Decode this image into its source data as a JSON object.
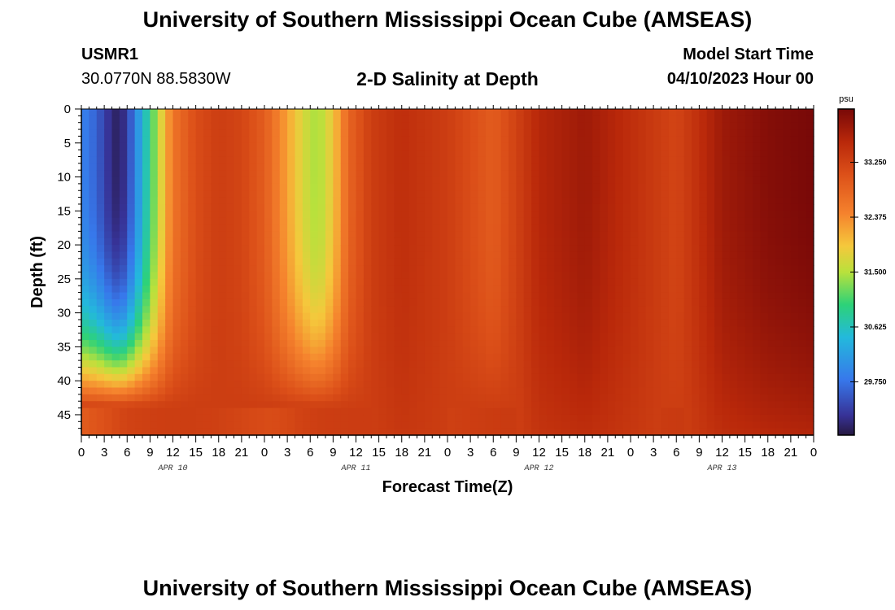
{
  "header": {
    "title": "University of Southern Mississippi Ocean Cube (AMSEAS)",
    "station": "USMR1",
    "coords": "30.0770N  88.5830W",
    "subtitle": "2-D Salinity at Depth",
    "model_start_label": "Model Start Time",
    "model_start_value": "04/10/2023 Hour 00"
  },
  "footer": {
    "title": "University of Southern Mississippi Ocean Cube (AMSEAS)"
  },
  "chart_data": {
    "type": "heatmap",
    "title": "2-D Salinity at Depth",
    "xlabel": "Forecast Time(Z)",
    "ylabel": "Depth (ft)",
    "xlim": [
      0,
      96
    ],
    "ylim": [
      48,
      0
    ],
    "x_ticks": [
      "0",
      "3",
      "6",
      "9",
      "12",
      "15",
      "18",
      "21",
      "0",
      "3",
      "6",
      "9",
      "12",
      "15",
      "18",
      "21",
      "0",
      "3",
      "6",
      "9",
      "12",
      "15",
      "18",
      "21",
      "0",
      "3",
      "6",
      "9",
      "12",
      "15",
      "18",
      "21",
      "0"
    ],
    "x_tick_hours": [
      0,
      3,
      6,
      9,
      12,
      15,
      18,
      21,
      24,
      27,
      30,
      33,
      36,
      39,
      42,
      45,
      48,
      51,
      54,
      57,
      60,
      63,
      66,
      69,
      72,
      75,
      78,
      81,
      84,
      87,
      90,
      93,
      96
    ],
    "day_labels": [
      {
        "label": "APR 10",
        "hour": 12
      },
      {
        "label": "APR 11",
        "hour": 36
      },
      {
        "label": "APR 12",
        "hour": 60
      },
      {
        "label": "APR 13",
        "hour": 84
      }
    ],
    "y_ticks": [
      0,
      5,
      10,
      15,
      20,
      25,
      30,
      35,
      40,
      45
    ],
    "colorbar": {
      "unit": "psu",
      "min": 28.9,
      "max": 34.1,
      "ticks": [
        33.25,
        32.375,
        31.5,
        30.625,
        29.75
      ],
      "tick_labels": [
        "33.250",
        "32.375",
        "31.500",
        "30.625",
        "29.750"
      ]
    },
    "surface_salinity_by_hour": [
      {
        "hour": 0,
        "value": 29.9
      },
      {
        "hour": 2,
        "value": 29.6
      },
      {
        "hour": 4,
        "value": 29.1
      },
      {
        "hour": 5,
        "value": 29.0
      },
      {
        "hour": 6,
        "value": 29.3
      },
      {
        "hour": 8,
        "value": 30.4
      },
      {
        "hour": 10,
        "value": 31.5
      },
      {
        "hour": 12,
        "value": 32.6
      },
      {
        "hour": 15,
        "value": 33.1
      },
      {
        "hour": 18,
        "value": 33.3
      },
      {
        "hour": 21,
        "value": 33.2
      },
      {
        "hour": 24,
        "value": 32.9
      },
      {
        "hour": 27,
        "value": 32.2
      },
      {
        "hour": 29,
        "value": 31.7
      },
      {
        "hour": 31,
        "value": 31.4
      },
      {
        "hour": 33,
        "value": 31.9
      },
      {
        "hour": 35,
        "value": 32.8
      },
      {
        "hour": 38,
        "value": 33.3
      },
      {
        "hour": 42,
        "value": 33.5
      },
      {
        "hour": 48,
        "value": 33.3
      },
      {
        "hour": 54,
        "value": 32.9
      },
      {
        "hour": 60,
        "value": 33.6
      },
      {
        "hour": 66,
        "value": 33.8
      },
      {
        "hour": 72,
        "value": 33.5
      },
      {
        "hour": 78,
        "value": 33.2
      },
      {
        "hour": 84,
        "value": 33.8
      },
      {
        "hour": 90,
        "value": 34.0
      },
      {
        "hour": 96,
        "value": 34.1
      }
    ],
    "bottom_salinity": 33.3,
    "mixing_depth_ft": 44
  }
}
